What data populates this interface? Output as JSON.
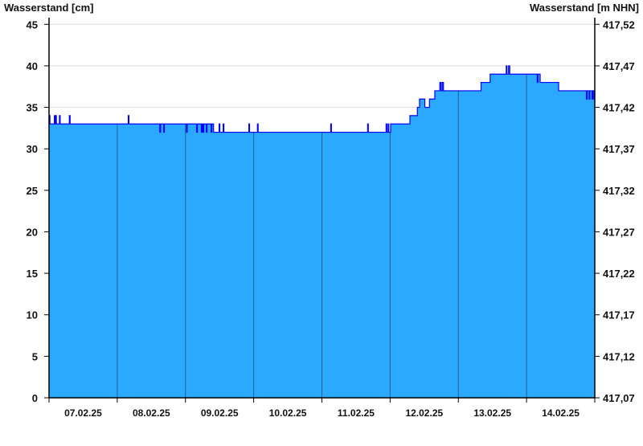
{
  "chart_data": {
    "type": "area",
    "ylabel_left": "Wasserstand [cm]",
    "ylabel_right": "Wasserstand [m NHN]",
    "ylim": [
      0,
      45
    ],
    "yticks_left": [
      "0",
      "5",
      "10",
      "15",
      "20",
      "25",
      "30",
      "35",
      "40",
      "45"
    ],
    "yticks_right": [
      "417,07",
      "417,12",
      "417,17",
      "417,22",
      "417,27",
      "417,32",
      "417,37",
      "417,42",
      "417,47",
      "417,52"
    ],
    "xlim": [
      "2025-02-07T00:00",
      "2025-02-15T00:00"
    ],
    "xtick_labels": [
      "07.02.25",
      "08.02.25",
      "09.02.25",
      "10.02.25",
      "11.02.25",
      "12.02.25",
      "13.02.25",
      "14.02.25"
    ],
    "grid": "horizontal",
    "colors": {
      "fill": "#2ba8ff",
      "line": "#0000ff",
      "day_separator": "#1f5f8a",
      "grid": "#dddddd"
    },
    "series": [
      {
        "step": true,
        "points": [
          [
            "2025-02-07T00:00",
            34
          ],
          [
            "2025-02-07T00:20",
            33
          ],
          [
            "2025-02-07T01:53",
            34
          ],
          [
            "2025-02-07T02:08",
            33
          ],
          [
            "2025-02-07T02:20",
            34
          ],
          [
            "2025-02-07T02:35",
            33
          ],
          [
            "2025-02-07T03:40",
            34
          ],
          [
            "2025-02-07T03:55",
            33
          ],
          [
            "2025-02-07T07:09",
            34
          ],
          [
            "2025-02-07T07:25",
            33
          ],
          [
            "2025-02-08T03:52",
            34
          ],
          [
            "2025-02-08T04:07",
            33
          ],
          [
            "2025-02-08T14:58",
            32
          ],
          [
            "2025-02-08T15:15",
            33
          ],
          [
            "2025-02-08T16:20",
            32
          ],
          [
            "2025-02-08T16:35",
            33
          ],
          [
            "2025-02-09T00:22",
            32
          ],
          [
            "2025-02-09T00:37",
            33
          ],
          [
            "2025-02-09T03:57",
            32
          ],
          [
            "2025-02-09T04:12",
            33
          ],
          [
            "2025-02-09T05:34",
            32
          ],
          [
            "2025-02-09T05:49",
            33
          ],
          [
            "2025-02-09T06:10",
            32
          ],
          [
            "2025-02-09T06:25",
            33
          ],
          [
            "2025-02-09T07:20",
            32
          ],
          [
            "2025-02-09T07:35",
            33
          ],
          [
            "2025-02-09T09:02",
            32
          ],
          [
            "2025-02-09T09:17",
            33
          ],
          [
            "2025-02-09T09:53",
            32
          ],
          [
            "2025-02-09T11:51",
            33
          ],
          [
            "2025-02-09T12:06",
            32
          ],
          [
            "2025-02-09T13:16",
            33
          ],
          [
            "2025-02-09T13:31",
            32
          ],
          [
            "2025-02-09T22:18",
            33
          ],
          [
            "2025-02-09T22:33",
            32
          ],
          [
            "2025-02-10T01:19",
            33
          ],
          [
            "2025-02-10T01:34",
            32
          ],
          [
            "2025-02-11T03:06",
            33
          ],
          [
            "2025-02-11T03:21",
            32
          ],
          [
            "2025-02-11T16:05",
            33
          ],
          [
            "2025-02-11T16:20",
            32
          ],
          [
            "2025-02-11T22:35",
            33
          ],
          [
            "2025-02-11T22:50",
            32
          ],
          [
            "2025-02-11T23:17",
            33
          ],
          [
            "2025-02-11T23:32",
            32
          ],
          [
            "2025-02-12T00:11",
            33
          ],
          [
            "2025-02-12T06:58",
            34
          ],
          [
            "2025-02-12T09:35",
            35
          ],
          [
            "2025-02-12T10:21",
            36
          ],
          [
            "2025-02-12T12:13",
            35
          ],
          [
            "2025-02-12T13:50",
            36
          ],
          [
            "2025-02-12T15:43",
            37
          ],
          [
            "2025-02-12T17:30",
            38
          ],
          [
            "2025-02-12T17:55",
            37
          ],
          [
            "2025-02-12T18:21",
            38
          ],
          [
            "2025-02-12T18:46",
            37
          ],
          [
            "2025-02-13T07:59",
            38
          ],
          [
            "2025-02-13T11:12",
            39
          ],
          [
            "2025-02-13T16:51",
            40
          ],
          [
            "2025-02-13T17:06",
            39
          ],
          [
            "2025-02-13T17:40",
            40
          ],
          [
            "2025-02-13T18:05",
            39
          ],
          [
            "2025-02-14T03:45",
            38
          ],
          [
            "2025-02-14T04:00",
            39
          ],
          [
            "2025-02-14T04:47",
            38
          ],
          [
            "2025-02-14T11:17",
            37
          ],
          [
            "2025-02-14T21:05",
            36
          ],
          [
            "2025-02-14T21:20",
            37
          ],
          [
            "2025-02-14T22:01",
            36
          ],
          [
            "2025-02-14T22:16",
            37
          ],
          [
            "2025-02-14T23:04",
            36
          ],
          [
            "2025-02-14T23:20",
            37
          ],
          [
            "2025-02-14T23:45",
            36
          ],
          [
            "2025-02-15T00:00",
            36
          ]
        ]
      }
    ]
  }
}
